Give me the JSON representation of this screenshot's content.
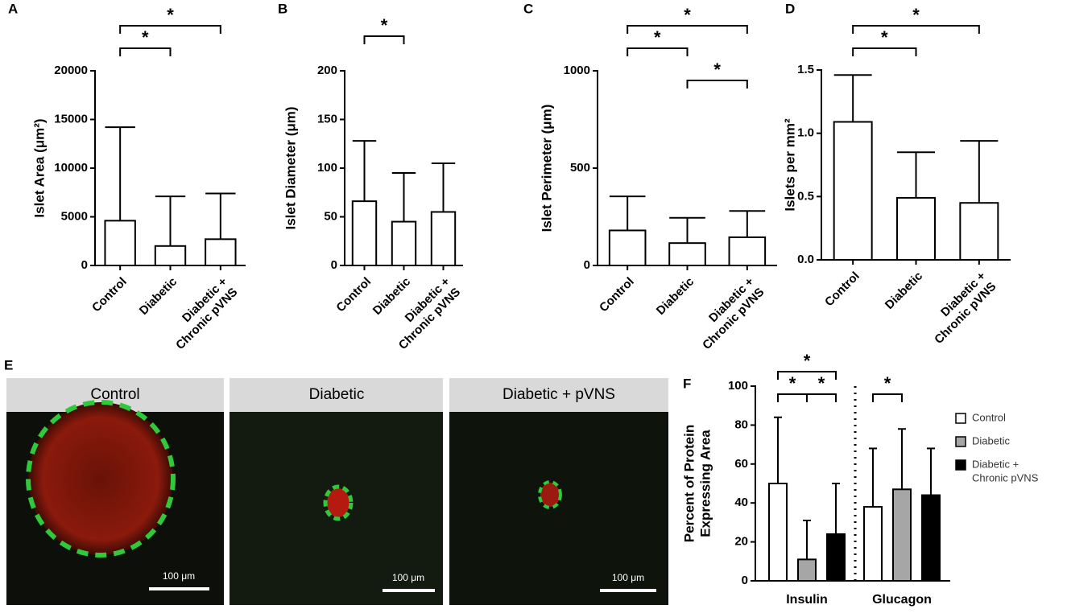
{
  "chart_data": [
    {
      "type": "bar",
      "panel_label": "A",
      "ylabel": "Islet  Area (μm²)",
      "categories": [
        [
          "Control"
        ],
        [
          "Diabetic"
        ],
        [
          "Diabetic +",
          "Chronic pVNS"
        ]
      ],
      "values": [
        4600,
        2000,
        2700
      ],
      "errors": [
        9600,
        5100,
        4700
      ],
      "ylim": [
        0,
        20000
      ],
      "yticks": [
        0,
        5000,
        10000,
        15000,
        20000
      ],
      "significance": [
        {
          "pair": [
            0,
            1
          ],
          "label": "*"
        },
        {
          "pair": [
            0,
            2
          ],
          "label": "*"
        }
      ]
    },
    {
      "type": "bar",
      "panel_label": "B",
      "ylabel": "Islet Diameter (μm)",
      "categories": [
        [
          "Control"
        ],
        [
          "Diabetic"
        ],
        [
          "Diabetic +",
          "Chronic pVNS"
        ]
      ],
      "values": [
        66,
        45,
        55
      ],
      "errors": [
        62,
        50,
        50
      ],
      "ylim": [
        0,
        200
      ],
      "yticks": [
        0,
        50,
        100,
        150,
        200
      ],
      "significance": [
        {
          "pair": [
            0,
            1
          ],
          "label": "*"
        }
      ]
    },
    {
      "type": "bar",
      "panel_label": "C",
      "ylabel": "Islet  Perimeter (μm)",
      "categories": [
        [
          "Control"
        ],
        [
          "Diabetic"
        ],
        [
          "Diabetic +",
          "Chronic pVNS"
        ]
      ],
      "values": [
        180,
        115,
        145
      ],
      "errors": [
        175,
        130,
        135
      ],
      "ylim": [
        0,
        1000
      ],
      "yticks": [
        0,
        500,
        1000
      ],
      "significance": [
        {
          "pair": [
            0,
            1
          ],
          "label": "*"
        },
        {
          "pair": [
            0,
            2
          ],
          "label": "*"
        },
        {
          "pair": [
            1,
            2
          ],
          "label": "*"
        }
      ]
    },
    {
      "type": "bar",
      "panel_label": "D",
      "ylabel": "Islets per mm²",
      "categories": [
        [
          "Control"
        ],
        [
          "Diabetic"
        ],
        [
          "Diabetic +",
          "Chronic pVNS"
        ]
      ],
      "values": [
        1.09,
        0.49,
        0.45
      ],
      "errors": [
        0.37,
        0.36,
        0.49
      ],
      "ylim": [
        0,
        1.5
      ],
      "yticks": [
        {
          "value": 0,
          "label": "0.0"
        },
        0.5,
        {
          "value": 1,
          "label": "1.0"
        },
        1.5
      ],
      "significance": [
        {
          "pair": [
            0,
            1
          ],
          "label": "*"
        },
        {
          "pair": [
            0,
            2
          ],
          "label": "*"
        }
      ]
    },
    {
      "type": "grouped_bar",
      "panel_label": "F",
      "ylabel": [
        "Percent of Protein",
        "Expressing Area"
      ],
      "categories": [
        "Insulin",
        "Glucagon"
      ],
      "series": [
        {
          "name": [
            "Control"
          ],
          "color": "#ffffff",
          "values": [
            50,
            38
          ],
          "errors": [
            34,
            30
          ]
        },
        {
          "name": [
            "Diabetic"
          ],
          "color": "#a6a6a6",
          "values": [
            11,
            47
          ],
          "errors": [
            20,
            31
          ]
        },
        {
          "name": [
            "Diabetic +",
            "Chronic pVNS"
          ],
          "color": "#000000",
          "values": [
            24,
            44
          ],
          "errors": [
            26,
            24
          ]
        }
      ],
      "ylim": [
        0,
        100
      ],
      "yticks": [
        0,
        20,
        40,
        60,
        80,
        100
      ],
      "significance": [
        {
          "category": 0,
          "pair": [
            0,
            1
          ],
          "label": "*"
        },
        {
          "category": 0,
          "pair": [
            1,
            2
          ],
          "label": "*"
        },
        {
          "category": 0,
          "pair": [
            0,
            2
          ],
          "label": "*"
        },
        {
          "category": 1,
          "pair": [
            0,
            1
          ],
          "label": "*"
        }
      ]
    }
  ],
  "micrographs": {
    "panel_label": "E",
    "panels": [
      {
        "title": "Control",
        "scale_bar": "100 μm"
      },
      {
        "title": "Diabetic",
        "scale_bar": "100 μm"
      },
      {
        "title": "Diabetic + pVNS",
        "scale_bar": "100 μm"
      }
    ]
  }
}
